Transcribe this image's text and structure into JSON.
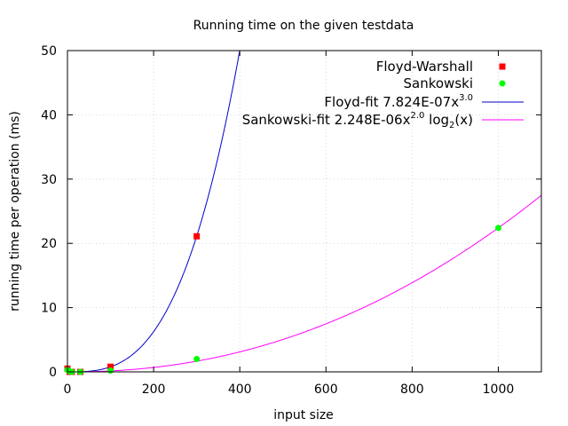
{
  "chart_data": {
    "type": "scatter",
    "title": "Running time on the given testdata",
    "xlabel": "input size",
    "ylabel": "running time per operation (ms)",
    "xlim": [
      0,
      1100
    ],
    "ylim": [
      0,
      50
    ],
    "xticks": [
      0,
      200,
      400,
      600,
      800,
      1000
    ],
    "xtick_labels": [
      "0",
      "200",
      "400",
      "600",
      "800",
      "1000"
    ],
    "yticks": [
      0,
      10,
      20,
      30,
      40,
      50
    ],
    "ytick_labels": [
      "0",
      "10",
      "20",
      "30",
      "40",
      "50"
    ],
    "grid": true,
    "legend_position": "top-right",
    "series": [
      {
        "name": "Floyd-Warshall",
        "kind": "points",
        "marker": "square",
        "color": "#ff0000",
        "x": [
          0,
          5,
          10,
          30,
          100,
          300
        ],
        "y": [
          0.5,
          0.0,
          0.0,
          0.0,
          0.8,
          21.1
        ]
      },
      {
        "name": "Sankowski",
        "kind": "points",
        "marker": "circle",
        "color": "#00ff00",
        "x": [
          0,
          5,
          10,
          30,
          100,
          300,
          1000
        ],
        "y": [
          0.3,
          0.1,
          0.0,
          0.0,
          0.2,
          2.0,
          22.4
        ]
      },
      {
        "name": "Floyd-fit 7.824E-07x3.0",
        "label_main": "Floyd-fit 7.824E-07x",
        "label_sup": "3.0",
        "kind": "line",
        "color": "#0000c8",
        "formula": "7.824E-07 * x^3.0"
      },
      {
        "name": "Sankowski-fit 2.248E-06x2.0 log2(x)",
        "label_main": "Sankowski-fit 2.248E-06x",
        "label_sup": "2.0",
        "label_mid": " log",
        "label_sub": "2",
        "label_end": "(x)",
        "kind": "line",
        "color": "#ff00ff",
        "formula": "2.248E-06 * x^2.0 * log2(x)"
      }
    ]
  }
}
